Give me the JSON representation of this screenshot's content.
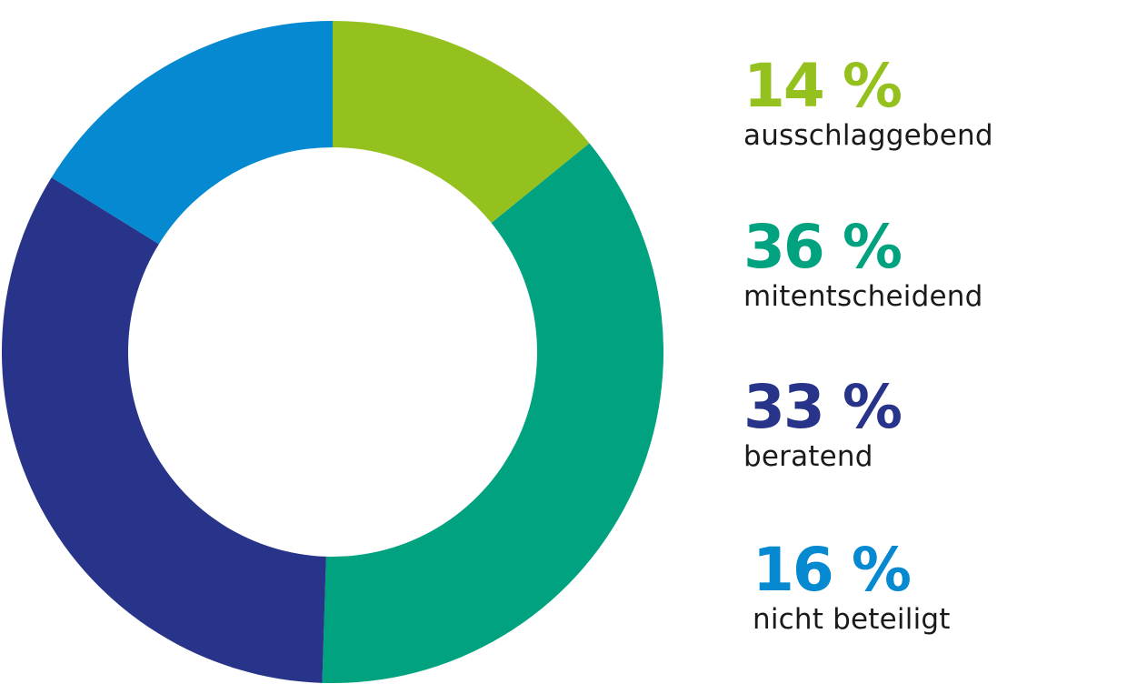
{
  "chart_data": {
    "type": "pie",
    "variant": "donut",
    "title": "",
    "start_angle_deg": 0,
    "direction": "clockwise",
    "slices": [
      {
        "label": "ausschlaggebend",
        "value": 14,
        "display": "14 %",
        "color": "#95c11f"
      },
      {
        "label": "mitentscheidend",
        "value": 36,
        "display": "36 %",
        "color": "#00a27f"
      },
      {
        "label": "beratend",
        "value": 33,
        "display": "33 %",
        "color": "#273489"
      },
      {
        "label": "nicht beteiligt",
        "value": 16,
        "display": "16 %",
        "color": "#0589d1"
      }
    ],
    "legend_position": "right"
  },
  "legend": [
    {
      "value": "14 %",
      "label": "ausschlaggebend"
    },
    {
      "value": "36 %",
      "label": "mitentscheidend"
    },
    {
      "value": "33 %",
      "label": "beratend"
    },
    {
      "value": "16 %",
      "label": "nicht beteiligt"
    }
  ]
}
